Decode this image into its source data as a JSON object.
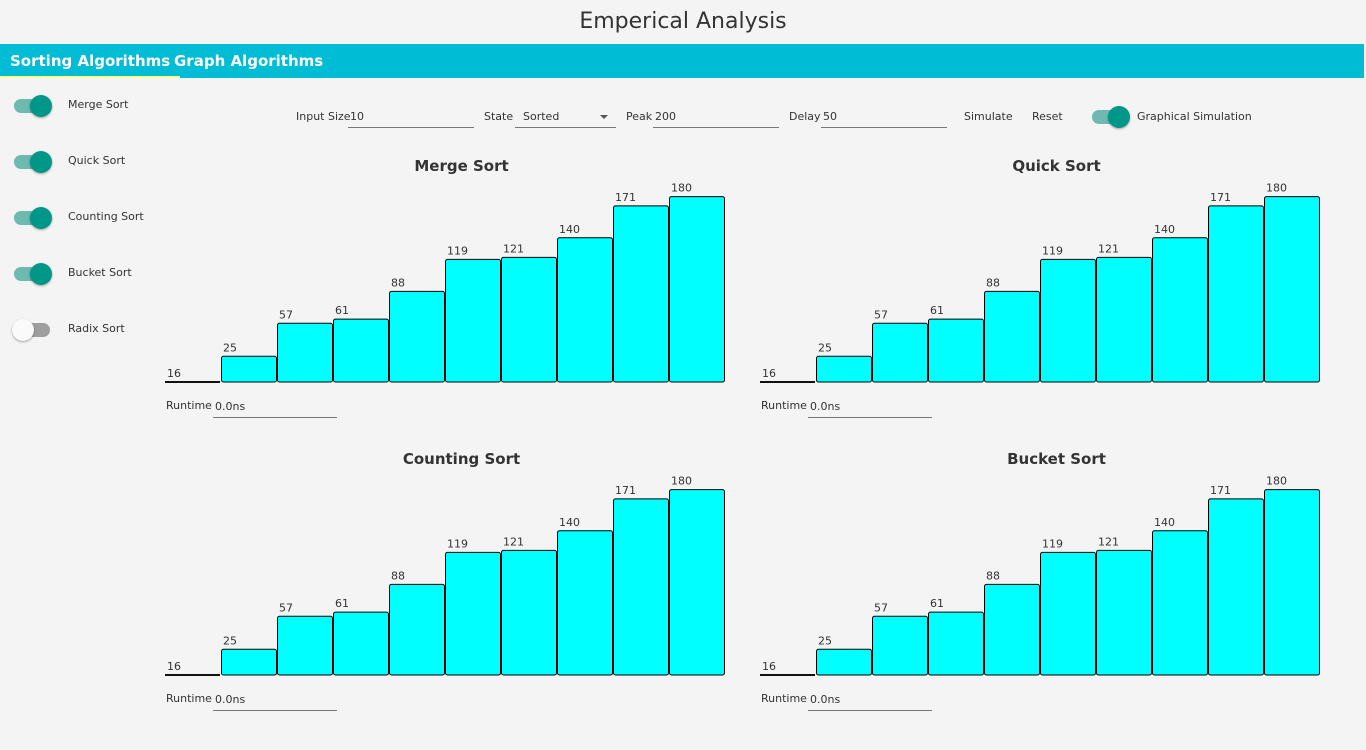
{
  "app": {
    "title": "Emperical Analysis"
  },
  "tabs": [
    {
      "label": "Sorting Algorithms",
      "active": true
    },
    {
      "label": "Graph Algorithms",
      "active": false
    }
  ],
  "sidebar": {
    "items": [
      {
        "label": "Merge Sort",
        "enabled": true
      },
      {
        "label": "Quick Sort",
        "enabled": true
      },
      {
        "label": "Counting Sort",
        "enabled": true
      },
      {
        "label": "Bucket Sort",
        "enabled": true
      },
      {
        "label": "Radix Sort",
        "enabled": false
      }
    ]
  },
  "controls": {
    "input_size_label": "Input Size",
    "input_size_value": "10",
    "state_label": "State",
    "state_value": "Sorted",
    "peak_label": "Peak",
    "peak_value": "200",
    "delay_label": "Delay",
    "delay_value": "50",
    "simulate_label": "Simulate",
    "reset_label": "Reset",
    "graphical_simulation_label": "Graphical Simulation",
    "graphical_simulation_enabled": true
  },
  "colors": {
    "accent": "#00bcd4",
    "bar_fill": "#00ffff",
    "toggle_on": "#009688"
  },
  "charts": [
    {
      "title": "Merge Sort",
      "runtime_label": "Runtime",
      "runtime_value": "0.0ns"
    },
    {
      "title": "Quick Sort",
      "runtime_label": "Runtime",
      "runtime_value": "0.0ns"
    },
    {
      "title": "Counting Sort",
      "runtime_label": "Runtime",
      "runtime_value": "0.0ns"
    },
    {
      "title": "Bucket Sort",
      "runtime_label": "Runtime",
      "runtime_value": "0.0ns"
    }
  ],
  "chart_data": [
    {
      "type": "bar",
      "title": "Merge Sort",
      "values": [
        16,
        25,
        57,
        61,
        88,
        119,
        121,
        140,
        171,
        180
      ],
      "ylim": [
        0,
        200
      ],
      "grid": false
    },
    {
      "type": "bar",
      "title": "Quick Sort",
      "values": [
        16,
        25,
        57,
        61,
        88,
        119,
        121,
        140,
        171,
        180
      ],
      "ylim": [
        0,
        200
      ],
      "grid": false
    },
    {
      "type": "bar",
      "title": "Counting Sort",
      "values": [
        16,
        25,
        57,
        61,
        88,
        119,
        121,
        140,
        171,
        180
      ],
      "ylim": [
        0,
        200
      ],
      "grid": false
    },
    {
      "type": "bar",
      "title": "Bucket Sort",
      "values": [
        16,
        25,
        57,
        61,
        88,
        119,
        121,
        140,
        171,
        180
      ],
      "ylim": [
        0,
        200
      ],
      "grid": false
    }
  ]
}
